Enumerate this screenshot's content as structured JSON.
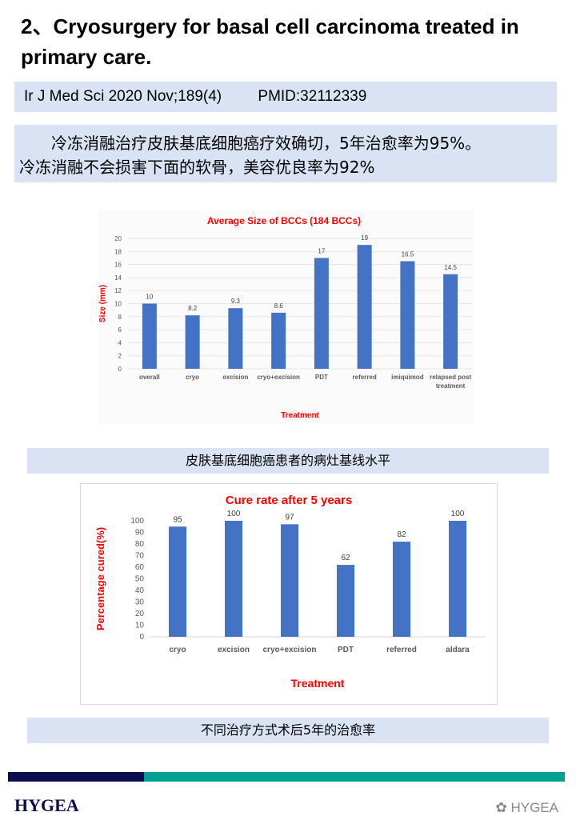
{
  "title": "2、Cryosurgery for basal cell carcinoma treated in primary care.",
  "citation": {
    "journal": "Ir J Med Sci 2020 Nov;189(4)",
    "pmid": "PMID:32112339"
  },
  "summary": [
    "　　冷冻消融治疗皮肤基底细胞癌疗效确切，5年治愈率为95%。",
    "冷冻消融不会损害下面的软骨，美容优良率为92%"
  ],
  "captions": {
    "chart1": "皮肤基底细胞癌患者的病灶基线水平",
    "chart2": "不同治疗方式术后5年的治愈率"
  },
  "footer": {
    "logo": "HYGEA",
    "watermark": "HYGEA"
  },
  "colors": {
    "bar": "#4472c4",
    "title": "#ff0000",
    "caption_bg": "#dae3f3"
  },
  "chart_data": [
    {
      "type": "bar",
      "title": "Average Size of BCCs (184 BCCs)",
      "xlabel": "Treatment",
      "ylabel": "Size (mm)",
      "categories": [
        "overall",
        "cryo",
        "excision",
        "cryo+excision",
        "PDT",
        "referred",
        "imiquimod",
        "relapsed post treatment"
      ],
      "values": [
        10,
        8.2,
        9.3,
        8.6,
        17,
        19,
        16.5,
        14.5
      ],
      "ylim": [
        0,
        20
      ],
      "yticks": [
        0,
        2,
        4,
        6,
        8,
        10,
        12,
        14,
        16,
        18,
        20
      ],
      "grid": true,
      "data_labels": true
    },
    {
      "type": "bar",
      "title": "Cure rate after 5 years",
      "xlabel": "Treatment",
      "ylabel": "Percentage cured(%)",
      "categories": [
        "cryo",
        "excision",
        "cryo+excision",
        "PDT",
        "referred",
        "aldara"
      ],
      "values": [
        95,
        100,
        97,
        62,
        82,
        100
      ],
      "ylim": [
        0,
        100
      ],
      "yticks": [
        0,
        10,
        20,
        30,
        40,
        50,
        60,
        70,
        80,
        90,
        100
      ],
      "grid": false,
      "data_labels": true
    }
  ]
}
